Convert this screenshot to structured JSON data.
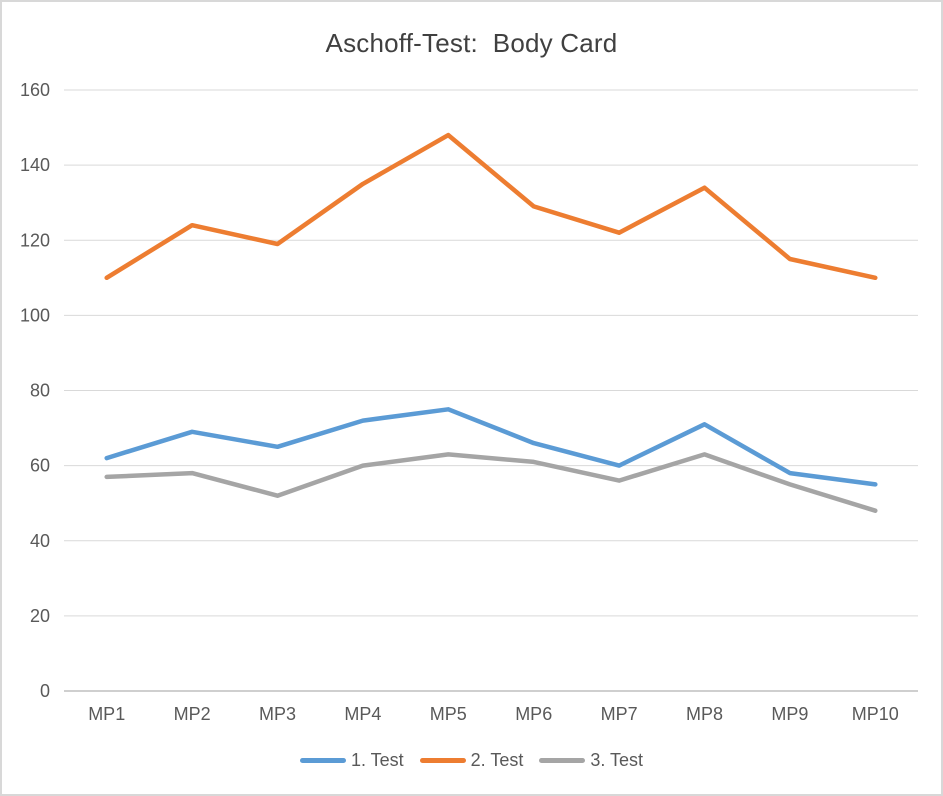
{
  "chart_data": {
    "type": "line",
    "title": "Aschoff-Test:  Body Card",
    "categories": [
      "MP1",
      "MP2",
      "MP3",
      "MP4",
      "MP5",
      "MP6",
      "MP7",
      "MP8",
      "MP9",
      "MP10"
    ],
    "series": [
      {
        "name": "1. Test",
        "color": "#5B9BD5",
        "values": [
          62,
          69,
          65,
          72,
          75,
          66,
          60,
          71,
          58,
          55
        ]
      },
      {
        "name": "2. Test",
        "color": "#ED7D31",
        "values": [
          110,
          124,
          119,
          135,
          148,
          129,
          122,
          134,
          115,
          110
        ]
      },
      {
        "name": "3. Test",
        "color": "#A5A5A5",
        "values": [
          57,
          58,
          52,
          60,
          63,
          61,
          56,
          63,
          55,
          48
        ]
      }
    ],
    "xlabel": "",
    "ylabel": "",
    "ylim": [
      0,
      160
    ],
    "ytick_step": 20,
    "ytick_labels": [
      "0",
      "20",
      "40",
      "60",
      "80",
      "100",
      "120",
      "140",
      "160"
    ],
    "grid": true,
    "legend_position": "bottom"
  },
  "colors": {
    "background": "#FFFFFF",
    "frame_border": "#D8D8D8",
    "gridline": "#D9D9D9",
    "axis_line": "#BFBFBF",
    "tick_label": "#595959",
    "title_text": "#404040"
  }
}
